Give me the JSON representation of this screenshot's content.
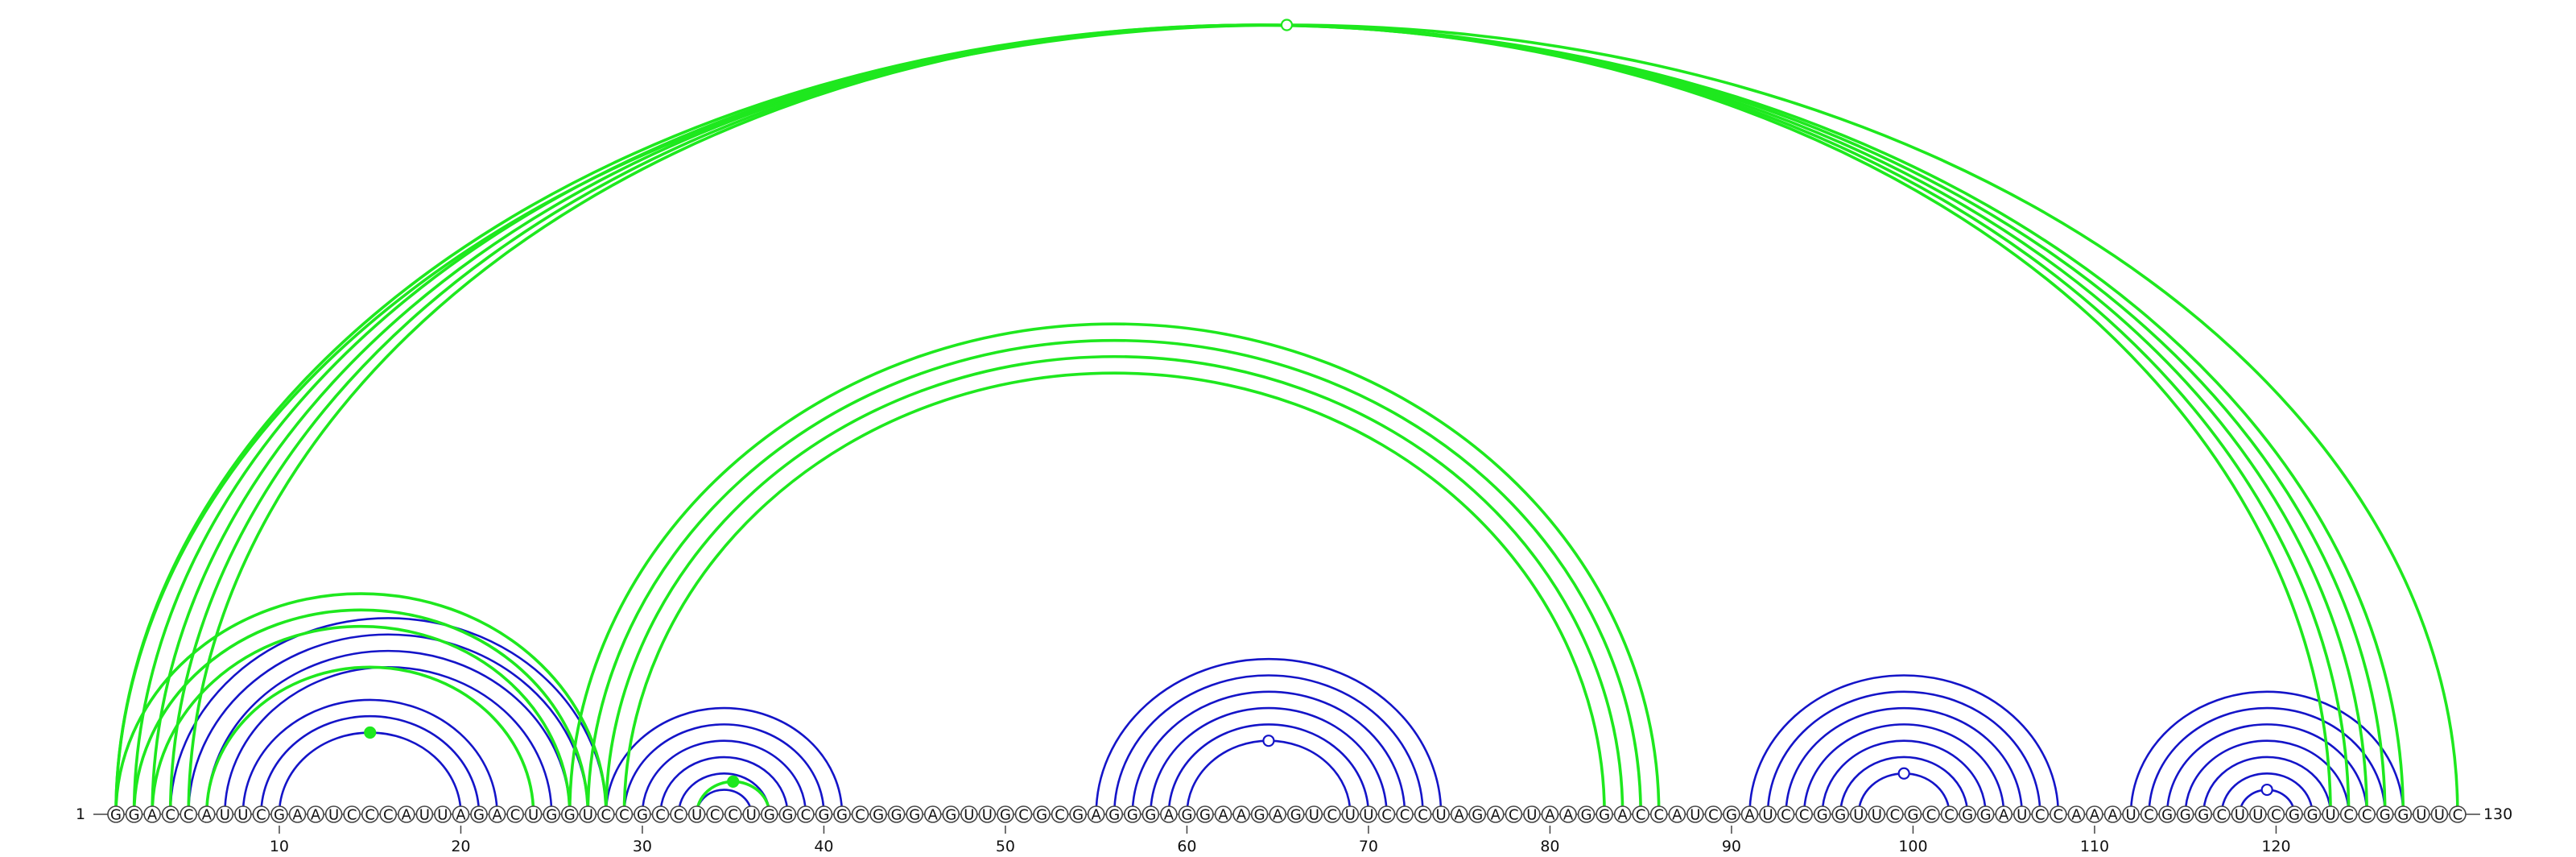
{
  "sequence": "GGACCAUUCGAAUCCCAUUAGACUGGUCCGCCUCCUGGCGGCGGGAGUUGCGCGAGGGAGGAAGAGUCUUCCCUAGACUAAGGACCAUCGAUCCGGUUCGCCGGAUCCAAAUCGGGCUUCGGUCCGGUUC",
  "start_label": "1",
  "end_label": "130",
  "ticks": [
    10,
    20,
    30,
    40,
    50,
    60,
    70,
    80,
    90,
    100,
    110,
    120
  ],
  "colors": {
    "local": "#1414c8",
    "long_range": "#1ee81e"
  },
  "helices": [
    {
      "name": "hairpin-a",
      "color": "blue",
      "start": 4,
      "end": 28,
      "count": 4,
      "step": 1,
      "gap": 0
    },
    {
      "name": "hairpin-a-inner",
      "color": "blue",
      "start": 8,
      "end": 22,
      "count": 3,
      "step": 1,
      "gap": 0
    },
    {
      "name": "hairpin-a-green",
      "color": "green",
      "start": 6,
      "end": 24,
      "count": 1,
      "step": 1,
      "gap": 0
    },
    {
      "name": "hairpin-b",
      "color": "blue",
      "start": 28,
      "end": 41,
      "count": 6,
      "step": 1,
      "gap": 0
    },
    {
      "name": "hairpin-b-green",
      "color": "green",
      "start": 33,
      "end": 37,
      "count": 1,
      "step": 1,
      "gap": 0
    },
    {
      "name": "hairpin-c",
      "color": "blue",
      "start": 55,
      "end": 74,
      "count": 6,
      "step": 1,
      "gap": 0
    },
    {
      "name": "hairpin-d",
      "color": "blue",
      "start": 91,
      "end": 108,
      "count": 7,
      "step": 1,
      "gap": 0
    },
    {
      "name": "hairpin-e",
      "color": "blue",
      "start": 112,
      "end": 127,
      "count": 7,
      "step": 1,
      "gap": 0
    },
    {
      "name": "pseudoknot-outer",
      "color": "green",
      "start": 1,
      "end": 130,
      "count": 1,
      "step": 1,
      "gap": 0
    },
    {
      "name": "pseudoknot-long",
      "color": "green",
      "start": 1,
      "end": 127,
      "count": 5,
      "step": 1,
      "gap": 0
    },
    {
      "name": "pseudoknot-mid",
      "color": "green",
      "start": 26,
      "end": 86,
      "count": 4,
      "step": 1,
      "gap": 0
    },
    {
      "name": "pseudoknot-left",
      "color": "green",
      "start": 1,
      "end": 28,
      "count": 3,
      "step": 1,
      "gap": 0
    }
  ],
  "markers": [
    {
      "pos": 15,
      "color": "green",
      "filled": true,
      "helix": "hairpin-a-inner"
    },
    {
      "pos": 35,
      "color": "green",
      "filled": true,
      "helix": "hairpin-b-green"
    },
    {
      "pos": 64.5,
      "color": "blue",
      "filled": false,
      "helix": "hairpin-c"
    },
    {
      "pos": 99,
      "color": "blue",
      "filled": false,
      "helix": "hairpin-d"
    },
    {
      "pos": 119.5,
      "color": "blue",
      "filled": false,
      "helix": "hairpin-e"
    },
    {
      "pos": 65.5,
      "color": "green",
      "filled": false,
      "helix": "pseudoknot-outer"
    }
  ]
}
